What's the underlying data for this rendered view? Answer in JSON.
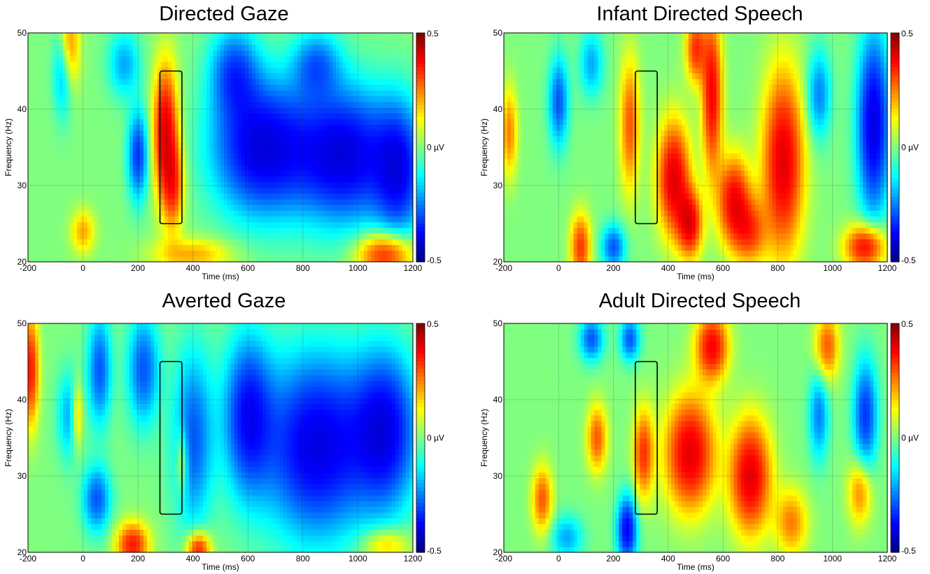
{
  "chart_data": [
    {
      "type": "heatmap",
      "title": "Directed Gaze",
      "xlabel": "Time (ms)",
      "ylabel": "Frequency (Hz)",
      "xlim": [
        -200,
        1200
      ],
      "ylim": [
        20,
        50
      ],
      "xticks": [
        "-200",
        "0",
        "200",
        "400",
        "600",
        "800",
        "1000",
        "1200"
      ],
      "yticks": [
        "20",
        "30",
        "40",
        "50"
      ],
      "colorbar": {
        "min": -0.5,
        "max": 0.5,
        "labels": [
          "0.5",
          "0 µV",
          "-0.5"
        ],
        "unit": "µV"
      },
      "highlight_box": {
        "time": [
          280,
          360
        ],
        "frequency": [
          25,
          45
        ]
      },
      "grid": true,
      "features": [
        {
          "t": 300,
          "f": 37,
          "amp": 1.0,
          "st": 30,
          "sf": 6
        },
        {
          "t": 330,
          "f": 30,
          "amp": 0.6,
          "st": 25,
          "sf": 4
        },
        {
          "t": -50,
          "f": 48,
          "amp": 0.6,
          "st": 25,
          "sf": 4
        },
        {
          "t": 0,
          "f": 24,
          "amp": 0.4,
          "st": 30,
          "sf": 2
        },
        {
          "t": 1100,
          "f": 21,
          "amp": 0.8,
          "st": 70,
          "sf": 2
        },
        {
          "t": 400,
          "f": 21,
          "amp": 0.4,
          "st": 100,
          "sf": 1.5
        },
        {
          "t": 200,
          "f": 34,
          "amp": -0.7,
          "st": 25,
          "sf": 4
        },
        {
          "t": 650,
          "f": 35,
          "amp": -1.0,
          "st": 120,
          "sf": 6
        },
        {
          "t": 950,
          "f": 34,
          "amp": -1.0,
          "st": 120,
          "sf": 6
        },
        {
          "t": 1150,
          "f": 32,
          "amp": -0.8,
          "st": 60,
          "sf": 6
        },
        {
          "t": -70,
          "f": 45,
          "amp": -0.5,
          "st": 25,
          "sf": 4
        },
        {
          "t": 550,
          "f": 45,
          "amp": -0.6,
          "st": 60,
          "sf": 4
        },
        {
          "t": 850,
          "f": 46,
          "amp": -0.5,
          "st": 60,
          "sf": 3
        },
        {
          "t": 150,
          "f": 46,
          "amp": -0.4,
          "st": 40,
          "sf": 3
        }
      ]
    },
    {
      "type": "heatmap",
      "title": "Infant Directed Speech",
      "xlabel": "Time (ms)",
      "ylabel": "Frequency (Hz)",
      "xlim": [
        -200,
        1200
      ],
      "ylim": [
        20,
        50
      ],
      "xticks": [
        "-200",
        "0",
        "200",
        "400",
        "600",
        "800",
        "1000",
        "1200"
      ],
      "yticks": [
        "20",
        "30",
        "40",
        "50"
      ],
      "colorbar": {
        "min": -0.5,
        "max": 0.5,
        "labels": [
          "0.5",
          "0 µV",
          "-0.5"
        ],
        "unit": "µV"
      },
      "highlight_box": {
        "time": [
          280,
          360
        ],
        "frequency": [
          25,
          45
        ]
      },
      "grid": true,
      "features": [
        {
          "t": 420,
          "f": 31,
          "amp": 1.0,
          "st": 40,
          "sf": 5
        },
        {
          "t": 480,
          "f": 25,
          "amp": 0.9,
          "st": 30,
          "sf": 3
        },
        {
          "t": 560,
          "f": 42,
          "amp": 0.9,
          "st": 25,
          "sf": 7
        },
        {
          "t": 640,
          "f": 28,
          "amp": 0.9,
          "st": 40,
          "sf": 4
        },
        {
          "t": 820,
          "f": 33,
          "amp": 1.0,
          "st": 50,
          "sf": 8
        },
        {
          "t": 500,
          "f": 48,
          "amp": 0.7,
          "st": 25,
          "sf": 3
        },
        {
          "t": 1120,
          "f": 22,
          "amp": 0.9,
          "st": 50,
          "sf": 2
        },
        {
          "t": 260,
          "f": 38,
          "amp": 0.6,
          "st": 25,
          "sf": 6
        },
        {
          "t": 80,
          "f": 22,
          "amp": 0.7,
          "st": 25,
          "sf": 3
        },
        {
          "t": 700,
          "f": 24,
          "amp": 0.6,
          "st": 40,
          "sf": 3
        },
        {
          "t": -180,
          "f": 37,
          "amp": 0.5,
          "st": 20,
          "sf": 4
        },
        {
          "t": 1150,
          "f": 38,
          "amp": -1.0,
          "st": 40,
          "sf": 8
        },
        {
          "t": 200,
          "f": 22,
          "amp": -0.6,
          "st": 30,
          "sf": 2
        },
        {
          "t": 0,
          "f": 41,
          "amp": -0.6,
          "st": 25,
          "sf": 4
        },
        {
          "t": 950,
          "f": 42,
          "amp": -0.5,
          "st": 30,
          "sf": 4
        },
        {
          "t": 120,
          "f": 46,
          "amp": -0.4,
          "st": 30,
          "sf": 3
        }
      ]
    },
    {
      "type": "heatmap",
      "title": "Averted Gaze",
      "xlabel": "Time (ms)",
      "ylabel": "Frequency (Hz)",
      "xlim": [
        -200,
        1200
      ],
      "ylim": [
        20,
        50
      ],
      "xticks": [
        "-200",
        "0",
        "200",
        "400",
        "600",
        "800",
        "1000",
        "1200"
      ],
      "yticks": [
        "20",
        "30",
        "40",
        "50"
      ],
      "colorbar": {
        "min": -0.5,
        "max": 0.5,
        "labels": [
          "0.5",
          "0 µV",
          "-0.5"
        ],
        "unit": "µV"
      },
      "highlight_box": {
        "time": [
          280,
          360
        ],
        "frequency": [
          25,
          45
        ]
      },
      "grid": true,
      "features": [
        {
          "t": 850,
          "f": 34,
          "amp": -1.0,
          "st": 130,
          "sf": 8
        },
        {
          "t": 1100,
          "f": 36,
          "amp": -0.9,
          "st": 80,
          "sf": 7
        },
        {
          "t": 600,
          "f": 38,
          "amp": -0.8,
          "st": 60,
          "sf": 7
        },
        {
          "t": 400,
          "f": 35,
          "amp": -0.6,
          "st": 50,
          "sf": 8
        },
        {
          "t": 60,
          "f": 44,
          "amp": -0.6,
          "st": 30,
          "sf": 5
        },
        {
          "t": 220,
          "f": 44,
          "amp": -0.6,
          "st": 40,
          "sf": 5
        },
        {
          "t": 50,
          "f": 27,
          "amp": -0.6,
          "st": 35,
          "sf": 3
        },
        {
          "t": -50,
          "f": 38,
          "amp": -0.4,
          "st": 30,
          "sf": 4
        },
        {
          "t": -190,
          "f": 44,
          "amp": 0.8,
          "st": 20,
          "sf": 5
        },
        {
          "t": 180,
          "f": 21,
          "amp": 0.8,
          "st": 40,
          "sf": 2
        },
        {
          "t": 420,
          "f": 20.5,
          "amp": 0.8,
          "st": 30,
          "sf": 1.5
        },
        {
          "t": -20,
          "f": 38,
          "amp": 0.5,
          "st": 15,
          "sf": 3
        },
        {
          "t": 360,
          "f": 32,
          "amp": 0.4,
          "st": 15,
          "sf": 3
        },
        {
          "t": 1100,
          "f": 21,
          "amp": 0.4,
          "st": 60,
          "sf": 1.5
        }
      ]
    },
    {
      "type": "heatmap",
      "title": "Adult Directed Speech",
      "xlabel": "Time (ms)",
      "ylabel": "Frequency (Hz)",
      "xlim": [
        -200,
        1200
      ],
      "ylim": [
        20,
        50
      ],
      "xticks": [
        "-200",
        "0",
        "200",
        "400",
        "600",
        "800",
        "1000",
        "1200"
      ],
      "yticks": [
        "20",
        "30",
        "40",
        "50"
      ],
      "colorbar": {
        "min": -0.5,
        "max": 0.5,
        "labels": [
          "0.5",
          "0 µV",
          "-0.5"
        ],
        "unit": "µV"
      },
      "highlight_box": {
        "time": [
          280,
          360
        ],
        "frequency": [
          25,
          45
        ]
      },
      "grid": true,
      "features": [
        {
          "t": 480,
          "f": 33,
          "amp": 1.0,
          "st": 60,
          "sf": 5
        },
        {
          "t": 700,
          "f": 30,
          "amp": 1.0,
          "st": 50,
          "sf": 5
        },
        {
          "t": 560,
          "f": 47,
          "amp": 0.9,
          "st": 40,
          "sf": 3
        },
        {
          "t": 310,
          "f": 33,
          "amp": 0.7,
          "st": 25,
          "sf": 4
        },
        {
          "t": 140,
          "f": 35,
          "amp": 0.6,
          "st": 25,
          "sf": 3
        },
        {
          "t": -60,
          "f": 27,
          "amp": 0.6,
          "st": 25,
          "sf": 3
        },
        {
          "t": 980,
          "f": 47,
          "amp": 0.6,
          "st": 30,
          "sf": 3
        },
        {
          "t": 1100,
          "f": 28,
          "amp": 0.5,
          "st": 30,
          "sf": 3
        },
        {
          "t": 850,
          "f": 24,
          "amp": 0.5,
          "st": 40,
          "sf": 3
        },
        {
          "t": 250,
          "f": 23,
          "amp": -0.9,
          "st": 25,
          "sf": 3
        },
        {
          "t": 1120,
          "f": 38,
          "amp": -0.7,
          "st": 30,
          "sf": 5
        },
        {
          "t": 120,
          "f": 48,
          "amp": -0.6,
          "st": 30,
          "sf": 2
        },
        {
          "t": 260,
          "f": 48,
          "amp": -0.6,
          "st": 25,
          "sf": 2
        },
        {
          "t": 950,
          "f": 38,
          "amp": -0.5,
          "st": 25,
          "sf": 4
        },
        {
          "t": 30,
          "f": 22,
          "amp": -0.4,
          "st": 40,
          "sf": 2
        }
      ]
    }
  ]
}
